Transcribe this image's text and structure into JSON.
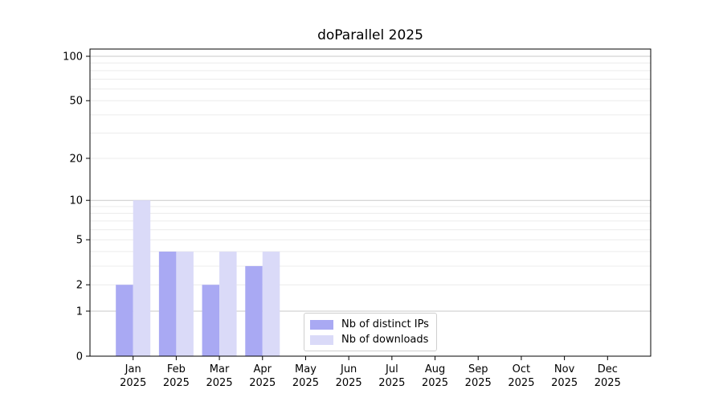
{
  "chart_data": {
    "type": "bar",
    "title": "doParallel 2025",
    "categories": [
      "Jan",
      "Feb",
      "Mar",
      "Apr",
      "May",
      "Jun",
      "Jul",
      "Aug",
      "Sep",
      "Oct",
      "Nov",
      "Dec"
    ],
    "x_year": "2025",
    "series": [
      {
        "name": "Nb of distinct IPs",
        "color": "#a9a9f3",
        "values": [
          2,
          4,
          2,
          3,
          0,
          0,
          0,
          0,
          0,
          0,
          0,
          0
        ]
      },
      {
        "name": "Nb of downloads",
        "color": "#dadaf8",
        "values": [
          10,
          4,
          4,
          4,
          0,
          0,
          0,
          0,
          0,
          0,
          0,
          0
        ]
      }
    ],
    "y_axis": {
      "scale": "log1p",
      "range": [
        0,
        112
      ],
      "ticks": [
        0,
        1,
        2,
        5,
        10,
        20,
        50,
        100
      ],
      "major_gridlines": [
        1,
        10,
        100
      ],
      "minor_gridlines": [
        2,
        3,
        4,
        5,
        6,
        7,
        8,
        9,
        20,
        30,
        40,
        50,
        60,
        70,
        80,
        90
      ]
    },
    "legend_position": "lower center",
    "colors": {
      "grid_minor": "#ececec",
      "grid_major": "#c9c9c9",
      "spine": "#000000",
      "text": "#000000"
    }
  }
}
